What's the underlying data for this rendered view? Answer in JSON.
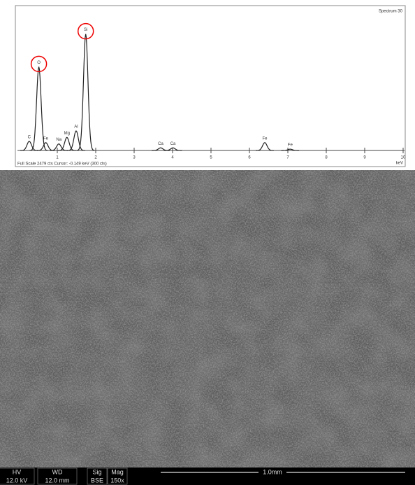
{
  "chart_data": {
    "type": "spectrum",
    "title": "Spectrum 30",
    "footer": "Full Scale 2479 cts Cursor: -0.149 keV (300 cts)",
    "x_label": "keV",
    "labels": [
      "C",
      "O",
      "Fe",
      "Na",
      "Mg",
      "Al",
      "Si",
      "Ca",
      "Ca",
      "Fe",
      "Fe"
    ],
    "x": [
      0.27,
      0.52,
      0.7,
      1.04,
      1.25,
      1.49,
      1.74,
      3.69,
      4.01,
      6.4,
      7.06
    ],
    "values": [
      7,
      64,
      6,
      5,
      10,
      15,
      89,
      2,
      2,
      6,
      1
    ],
    "color": "#222222",
    "xlim": [
      0,
      10
    ],
    "xticks": [
      1,
      2,
      3,
      4,
      5,
      6,
      7,
      8,
      9,
      10
    ],
    "ylim": [
      0,
      100
    ]
  },
  "sem": {
    "info_bar": {
      "headers": [
        "HV",
        "WD",
        "Sig",
        "Mag"
      ],
      "values": [
        "12.0 kV",
        "12.0 mm",
        "BSE",
        "150x"
      ],
      "scale": "1.0mm"
    }
  }
}
